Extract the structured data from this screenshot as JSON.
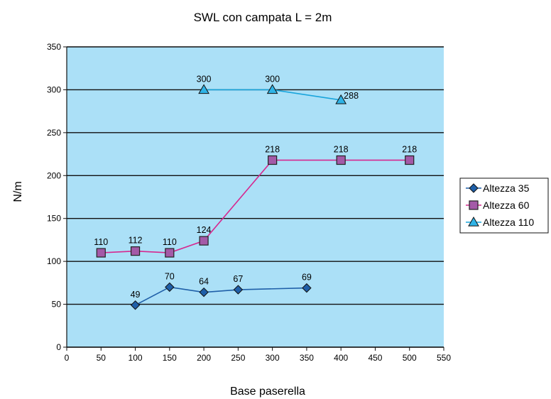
{
  "chart_data": {
    "type": "line",
    "title": "SWL con campata L = 2m",
    "xlabel": "Base paserella",
    "ylabel": "N/m",
    "xlim": [
      0,
      550
    ],
    "ylim": [
      0,
      350
    ],
    "xticks": [
      0,
      50,
      100,
      150,
      200,
      250,
      300,
      350,
      400,
      450,
      500,
      550
    ],
    "yticks": [
      0,
      50,
      100,
      150,
      200,
      250,
      300,
      350
    ],
    "grid": "horizontal",
    "plot_background": "#abe0f7",
    "legend_position": "right",
    "series": [
      {
        "name": "Altezza 35",
        "marker": "diamond",
        "color": "#1f5fa8",
        "x": [
          100,
          150,
          200,
          250,
          350
        ],
        "y": [
          49,
          70,
          64,
          67,
          69
        ],
        "labels": [
          "49",
          "70",
          "64",
          "67",
          "69"
        ]
      },
      {
        "name": "Altezza 60",
        "marker": "square",
        "color": "#d6288f",
        "marker_fill": "#a45aa8",
        "x": [
          50,
          100,
          150,
          200,
          300,
          400,
          500
        ],
        "y": [
          110,
          112,
          110,
          124,
          218,
          218,
          218
        ],
        "labels": [
          "110",
          "112",
          "110",
          "124",
          "218",
          "218",
          "218"
        ]
      },
      {
        "name": "Altezza 110",
        "marker": "triangle",
        "color": "#1aa5dc",
        "marker_fill": "#2fb3e6",
        "x": [
          200,
          300,
          400
        ],
        "y": [
          300,
          300,
          288
        ],
        "labels": [
          "300",
          "300",
          "288"
        ]
      }
    ]
  }
}
